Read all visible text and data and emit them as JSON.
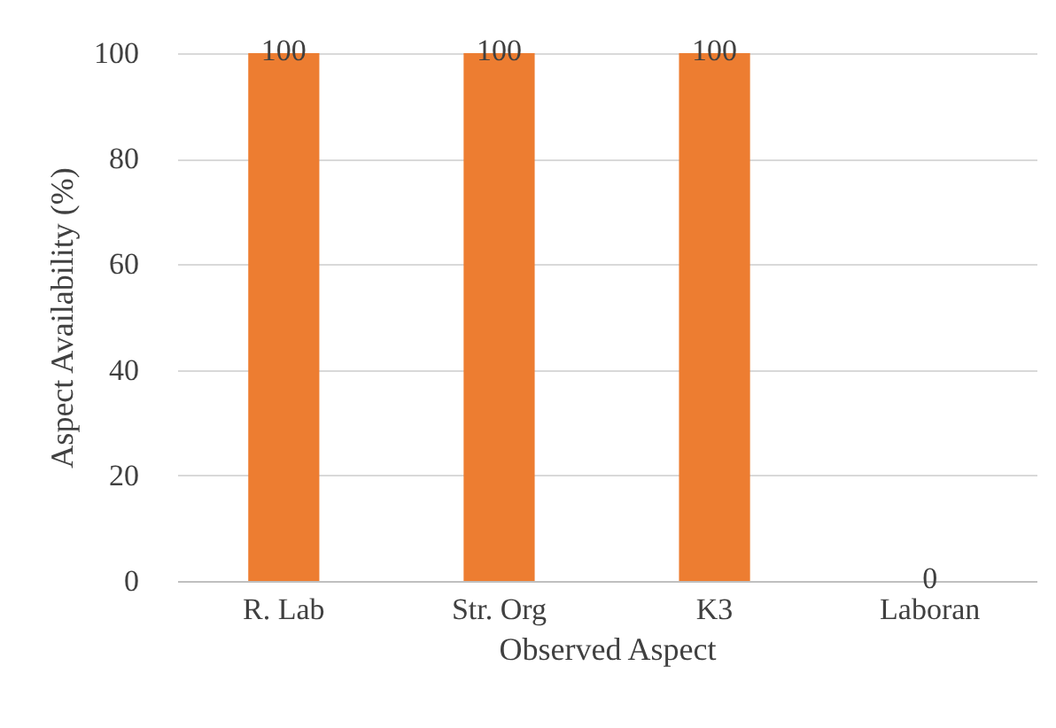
{
  "chart_data": {
    "type": "bar",
    "xlabel": "Observed Aspect",
    "ylabel": "Aspect Availability (%)",
    "categories": [
      "R. Lab",
      "Str. Org",
      "K3",
      "Laboran"
    ],
    "values": [
      100,
      100,
      100,
      0
    ],
    "color": "#ed7d31",
    "ylim": [
      0,
      100
    ],
    "yticks": [
      0,
      20,
      40,
      60,
      80,
      100
    ],
    "grid": "y",
    "data_labels": true
  }
}
